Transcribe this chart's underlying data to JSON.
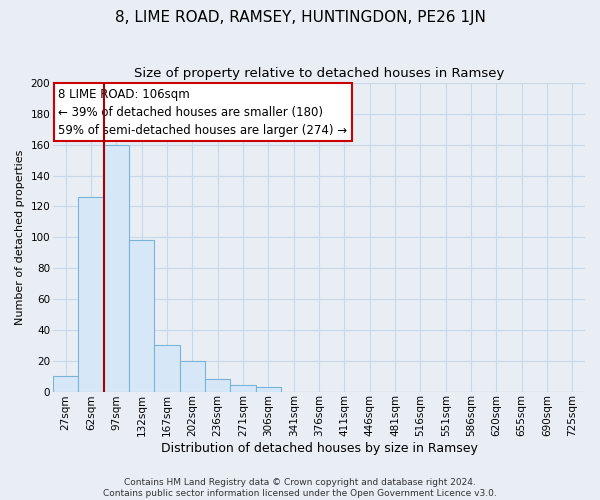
{
  "title": "8, LIME ROAD, RAMSEY, HUNTINGDON, PE26 1JN",
  "subtitle": "Size of property relative to detached houses in Ramsey",
  "xlabel": "Distribution of detached houses by size in Ramsey",
  "ylabel": "Number of detached properties",
  "bar_labels": [
    "27sqm",
    "62sqm",
    "97sqm",
    "132sqm",
    "167sqm",
    "202sqm",
    "236sqm",
    "271sqm",
    "306sqm",
    "341sqm",
    "376sqm",
    "411sqm",
    "446sqm",
    "481sqm",
    "516sqm",
    "551sqm",
    "586sqm",
    "620sqm",
    "655sqm",
    "690sqm",
    "725sqm"
  ],
  "bar_values": [
    10,
    126,
    160,
    98,
    30,
    20,
    8,
    4,
    3,
    0,
    0,
    0,
    0,
    0,
    0,
    0,
    0,
    0,
    0,
    0,
    0
  ],
  "bar_color": "#d6e8f7",
  "bar_edge_color": "#7ab3d8",
  "vline_x": 2.0,
  "vline_color": "#aa0000",
  "annotation_text": "8 LIME ROAD: 106sqm\n← 39% of detached houses are smaller (180)\n59% of semi-detached houses are larger (274) →",
  "annotation_box_color": "#ffffff",
  "annotation_box_edge_color": "#cc0000",
  "ylim": [
    0,
    200
  ],
  "yticks": [
    0,
    20,
    40,
    60,
    80,
    100,
    120,
    140,
    160,
    180,
    200
  ],
  "background_color": "#e8eef4",
  "plot_bg_color": "#e8eef4",
  "grid_color": "#c8d8e8",
  "footer_text": "Contains HM Land Registry data © Crown copyright and database right 2024.\nContains public sector information licensed under the Open Government Licence v3.0.",
  "title_fontsize": 11,
  "subtitle_fontsize": 9.5,
  "xlabel_fontsize": 9,
  "ylabel_fontsize": 8,
  "tick_fontsize": 7.5,
  "annotation_fontsize": 8.5,
  "footer_fontsize": 6.5
}
